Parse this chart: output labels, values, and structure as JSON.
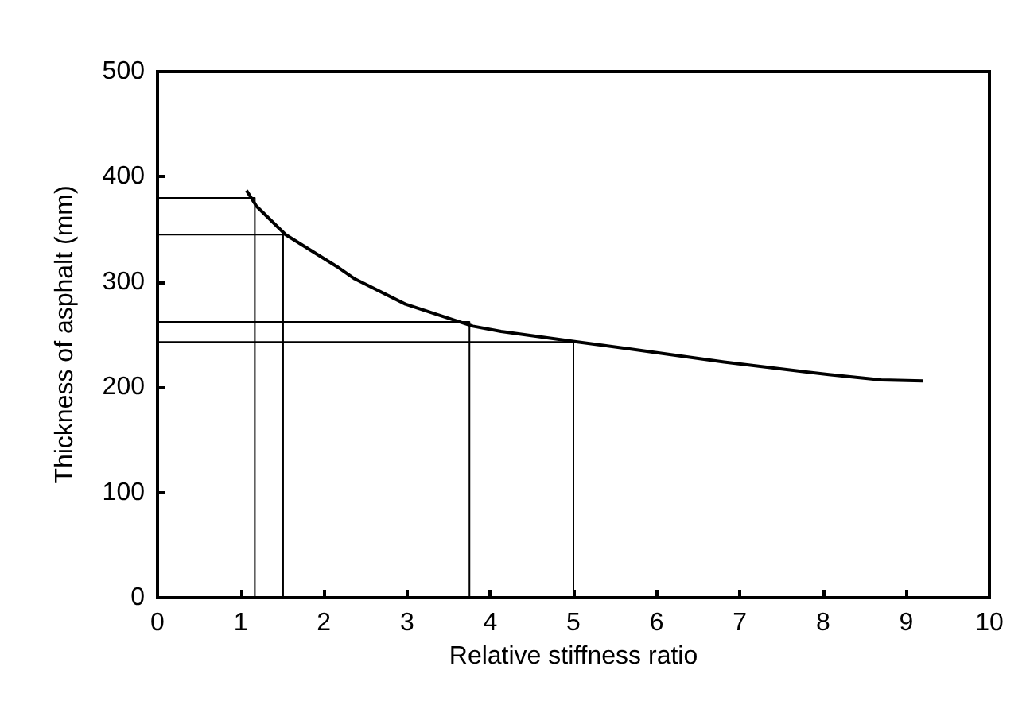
{
  "chart_data": {
    "type": "line",
    "xlabel": "Relative stiffness ratio",
    "ylabel": "Thickness of asphalt (mm)",
    "xlim": [
      0,
      10
    ],
    "xticks": [
      0,
      1,
      2,
      3,
      4,
      5,
      6,
      7,
      8,
      9,
      10
    ],
    "ylim": [
      0,
      500
    ],
    "yticks": [
      0,
      100,
      200,
      300,
      400,
      500
    ],
    "marker": "none",
    "line_style": "solid",
    "series": [
      {
        "color": "#000000",
        "x": [
          1.07,
          1.19,
          1.54,
          2.15,
          2.37,
          2.98,
          3.79,
          4.13,
          5.05,
          5.71,
          6.81,
          8.07,
          8.7,
          9.2
        ],
        "values": [
          387,
          372,
          345,
          315,
          303,
          279,
          258,
          253,
          243,
          236,
          224,
          212,
          207,
          206
        ]
      },
      {
        "type": "line",
        "color": "#000000",
        "x": [
          1.17,
          1.17,
          0
        ],
        "values": [
          0,
          380,
          380
        ]
      },
      {
        "type": "line",
        "color": "#000000",
        "x": [
          1.51,
          1.51,
          0
        ],
        "values": [
          0,
          345,
          345
        ]
      },
      {
        "type": "line",
        "color": "#000000",
        "x": [
          3.75,
          3.75,
          0
        ],
        "values": [
          0,
          262,
          262
        ]
      },
      {
        "type": "line",
        "color": "#000000",
        "x": [
          5.0,
          5.0,
          0
        ],
        "values": [
          0,
          243,
          243
        ]
      }
    ]
  }
}
